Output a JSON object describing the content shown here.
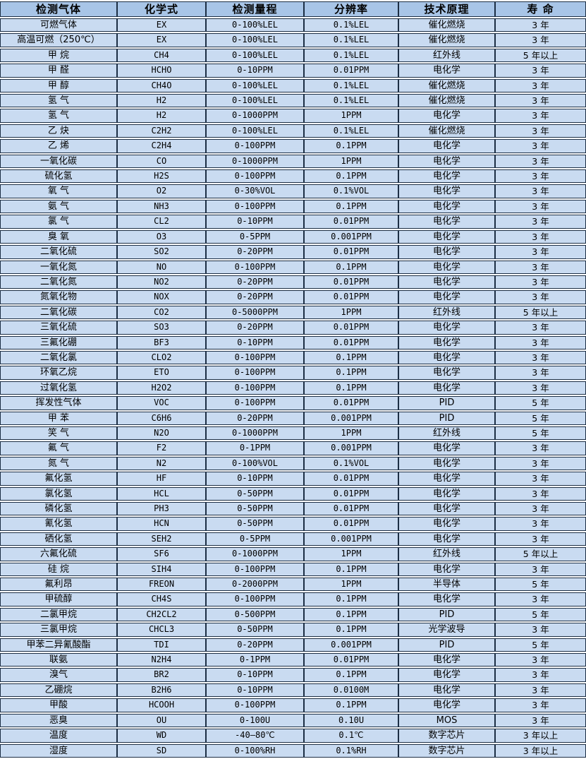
{
  "table": {
    "title": "gas-sensor-specification-table",
    "colors": {
      "header_bg": "#a8c5e7",
      "row_bg": "#c9dbf1",
      "border": "#1c2e44",
      "gap": "#ffffff",
      "text": "#000000"
    },
    "columns": [
      "检测气体",
      "化学式",
      "检测量程",
      "分辨率",
      "技术原理",
      "寿 命"
    ],
    "rows": [
      [
        "可燃气体",
        "EX",
        "0-100%LEL",
        "0.1%LEL",
        "催化燃烧",
        "3 年"
      ],
      [
        "高温可燃（250℃）",
        "EX",
        "0-100%LEL",
        "0.1%LEL",
        "催化燃烧",
        "3 年"
      ],
      [
        "甲 烷",
        "CH4",
        "0-100%LEL",
        "0.1%LEL",
        "红外线",
        "5 年以上"
      ],
      [
        "甲 醛",
        "HCHO",
        "0-10PPM",
        "0.01PPM",
        "电化学",
        "3 年"
      ],
      [
        "甲 醇",
        "CH4O",
        "0-100%LEL",
        "0.1%LEL",
        "催化燃烧",
        "3 年"
      ],
      [
        "氢 气",
        "H2",
        "0-100%LEL",
        "0.1%LEL",
        "催化燃烧",
        "3 年"
      ],
      [
        "氢 气",
        "H2",
        "0-1000PPM",
        "1PPM",
        "电化学",
        "3 年"
      ],
      [
        "乙 炔",
        "C2H2",
        "0-100%LEL",
        "0.1%LEL",
        "催化燃烧",
        "3 年"
      ],
      [
        "乙 烯",
        "C2H4",
        "0-100PPM",
        "0.1PPM",
        "电化学",
        "3 年"
      ],
      [
        "一氧化碳",
        "CO",
        "0-1000PPM",
        "1PPM",
        "电化学",
        "3 年"
      ],
      [
        "硫化氢",
        "H2S",
        "0-100PPM",
        "0.1PPM",
        "电化学",
        "3 年"
      ],
      [
        "氧 气",
        "O2",
        "0-30%VOL",
        "0.1%VOL",
        "电化学",
        "3 年"
      ],
      [
        "氨 气",
        "NH3",
        "0-100PPM",
        "0.1PPM",
        "电化学",
        "3 年"
      ],
      [
        "氯 气",
        "CL2",
        "0-10PPM",
        "0.01PPM",
        "电化学",
        "3 年"
      ],
      [
        "臭 氧",
        "O3",
        "0-5PPM",
        "0.001PPM",
        "电化学",
        "3 年"
      ],
      [
        "二氧化硫",
        "SO2",
        "0-20PPM",
        "0.01PPM",
        "电化学",
        "3 年"
      ],
      [
        "一氧化氮",
        "NO",
        "0-100PPM",
        "0.1PPM",
        "电化学",
        "3 年"
      ],
      [
        "二氧化氮",
        "NO2",
        "0-20PPM",
        "0.01PPM",
        "电化学",
        "3 年"
      ],
      [
        "氮氧化物",
        "NOX",
        "0-20PPM",
        "0.01PPM",
        "电化学",
        "3 年"
      ],
      [
        "二氧化碳",
        "CO2",
        "0-5000PPM",
        "1PPM",
        "红外线",
        "5 年以上"
      ],
      [
        "三氧化硫",
        "SO3",
        "0-20PPM",
        "0.01PPM",
        "电化学",
        "3 年"
      ],
      [
        "三氟化硼",
        "BF3",
        "0-10PPM",
        "0.01PPM",
        "电化学",
        "3 年"
      ],
      [
        "二氧化氯",
        "CLO2",
        "0-100PPM",
        "0.1PPM",
        "电化学",
        "3 年"
      ],
      [
        "环氧乙烷",
        "ETO",
        "0-100PPM",
        "0.1PPM",
        "电化学",
        "3 年"
      ],
      [
        "过氧化氢",
        "H2O2",
        "0-100PPM",
        "0.1PPM",
        "电化学",
        "3 年"
      ],
      [
        "挥发性气体",
        "VOC",
        "0-100PPM",
        "0.01PPM",
        "PID",
        "5 年"
      ],
      [
        "甲 苯",
        "C6H6",
        "0-20PPM",
        "0.001PPM",
        "PID",
        "5 年"
      ],
      [
        "笑 气",
        "N2O",
        "0-1000PPM",
        "1PPM",
        "红外线",
        "5 年"
      ],
      [
        "氟 气",
        "F2",
        "0-1PPM",
        "0.001PPM",
        "电化学",
        "3 年"
      ],
      [
        "氮 气",
        "N2",
        "0-100%VOL",
        "0.1%VOL",
        "电化学",
        "3 年"
      ],
      [
        "氟化氢",
        "HF",
        "0-10PPM",
        "0.01PPM",
        "电化学",
        "3 年"
      ],
      [
        "氯化氢",
        "HCL",
        "0-50PPM",
        "0.01PPM",
        "电化学",
        "3 年"
      ],
      [
        "磷化氢",
        "PH3",
        "0-50PPM",
        "0.01PPM",
        "电化学",
        "3 年"
      ],
      [
        "氰化氢",
        "HCN",
        "0-50PPM",
        "0.01PPM",
        "电化学",
        "3 年"
      ],
      [
        "硒化氢",
        "SEH2",
        "0-5PPM",
        "0.001PPM",
        "电化学",
        "3 年"
      ],
      [
        "六氟化硫",
        "SF6",
        "0-1000PPM",
        "1PPM",
        "红外线",
        "5 年以上"
      ],
      [
        "硅 烷",
        "SIH4",
        "0-100PPM",
        "0.1PPM",
        "电化学",
        "3 年"
      ],
      [
        "氟利昂",
        "FREON",
        "0-2000PPM",
        "1PPM",
        "半导体",
        "5 年"
      ],
      [
        "甲硫醇",
        "CH4S",
        "0-100PPM",
        "0.1PPM",
        "电化学",
        "3 年"
      ],
      [
        "二氯甲烷",
        "CH2CL2",
        "0-500PPM",
        "0.1PPM",
        "PID",
        "5 年"
      ],
      [
        "三氯甲烷",
        "CHCL3",
        "0-50PPM",
        "0.1PPM",
        "光学波导",
        "3 年"
      ],
      [
        "甲苯二异氰酸酯",
        "TDI",
        "0-20PPM",
        "0.001PPM",
        "PID",
        "5 年"
      ],
      [
        "联氨",
        "N2H4",
        "0-1PPM",
        "0.01PPM",
        "电化学",
        "3 年"
      ],
      [
        "溴气",
        "BR2",
        "0-10PPM",
        "0.1PPM",
        "电化学",
        "3 年"
      ],
      [
        "乙硼烷",
        "B2H6",
        "0-10PPM",
        "0.0100M",
        "电化学",
        "3 年"
      ],
      [
        "甲酸",
        "HCOOH",
        "0-100PPM",
        "0.1PPM",
        "电化学",
        "3 年"
      ],
      [
        "恶臭",
        "OU",
        "0-100U",
        "0.10U",
        "MOS",
        "3 年"
      ],
      [
        "温度",
        "WD",
        "-40—80℃",
        "0.1℃",
        "数字芯片",
        "3 年以上"
      ],
      [
        "湿度",
        "SD",
        "0-100%RH",
        "0.1%RH",
        "数字芯片",
        "3 年以上"
      ]
    ]
  }
}
